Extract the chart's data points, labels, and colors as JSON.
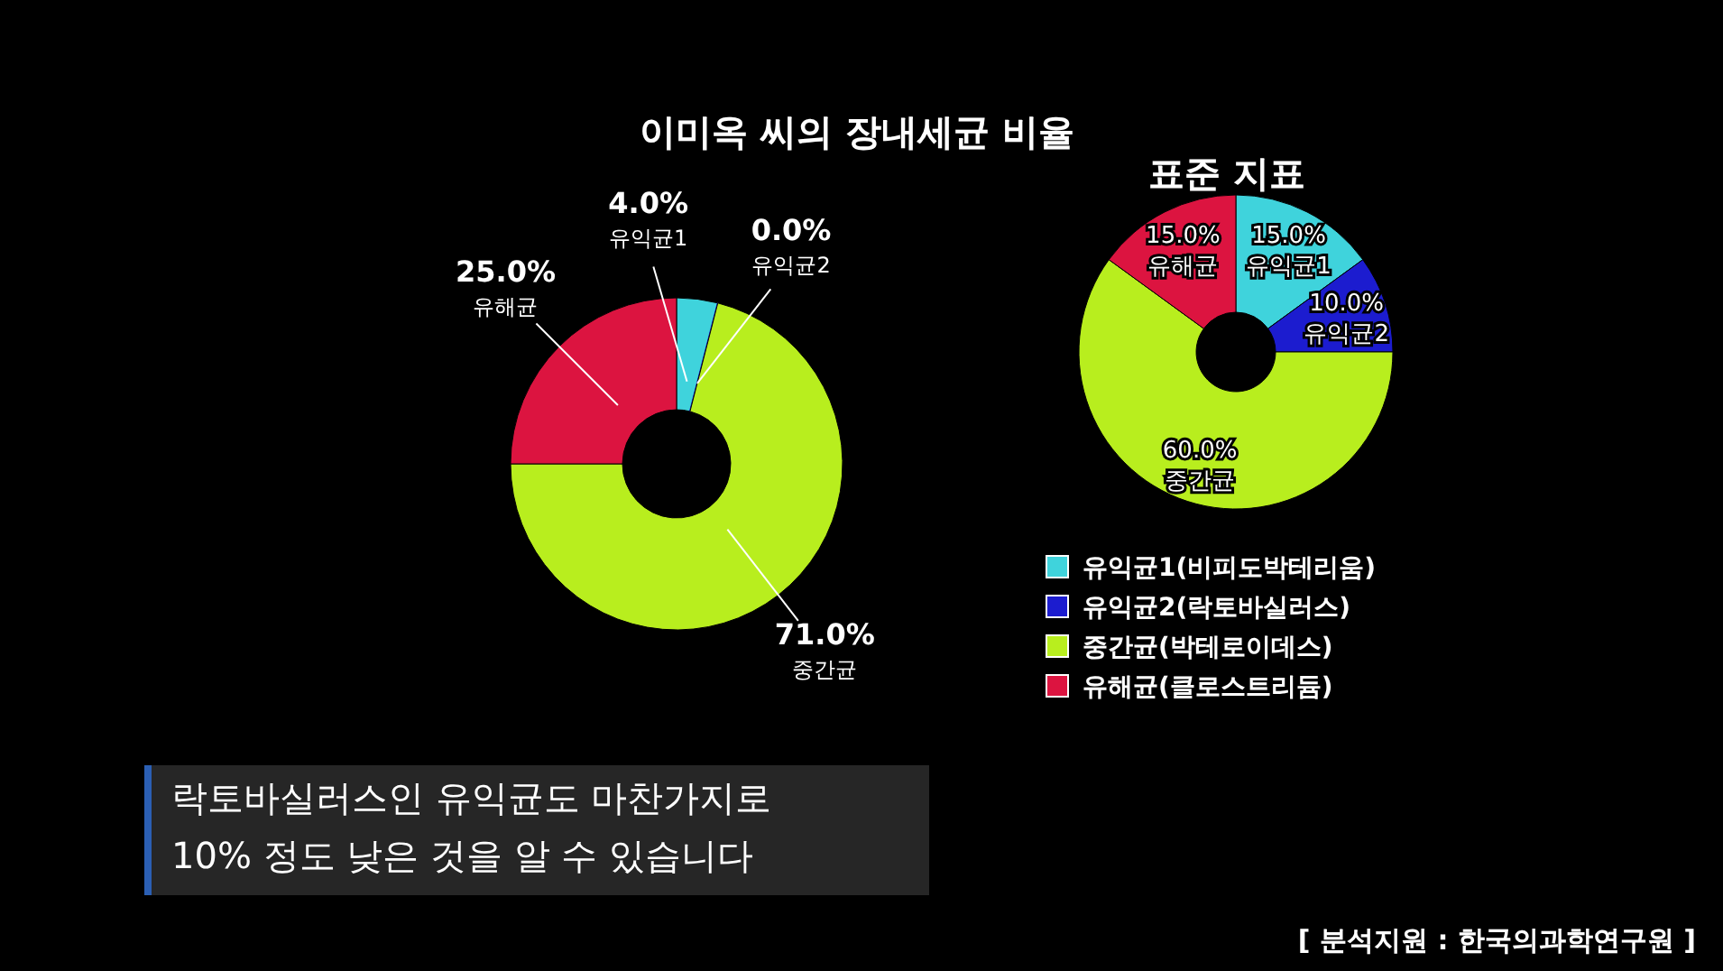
{
  "chart_data": [
    {
      "type": "donut",
      "title": "이미옥 씨의 장내세균 비율",
      "categories": [
        "유익균1",
        "유익균2",
        "중간균",
        "유해균"
      ],
      "values": [
        4.0,
        0.0,
        71.0,
        25.0
      ],
      "colors": [
        "#3fd3dc",
        "#1c1ccf",
        "#b8ee1e",
        "#dc1440"
      ],
      "value_labels": [
        "4.0%",
        "0.0%",
        "71.0%",
        "25.0%"
      ]
    },
    {
      "type": "donut",
      "title": "표준 지표",
      "categories": [
        "유익균1(비피도박테리움)",
        "유익균2(락토바실러스)",
        "중간균(박테로이데스)",
        "유해균(클로스트리듐)"
      ],
      "values": [
        15.0,
        10.0,
        60.0,
        15.0
      ],
      "colors": [
        "#3fd3dc",
        "#1c1ccf",
        "#b8ee1e",
        "#dc1440"
      ],
      "value_labels": [
        "15.0%\n유익균1",
        "10.0%\n유익균2",
        "60.0%\n중간균",
        "15.0%\n유해균"
      ],
      "legend": "bottom",
      "annotations": [
        "락토바실러스인 유익균도 마찬가지로\n10% 정도 낮은 것을 알 수 있습니다",
        "[ 분석지원 : 한국의과학연구원 ]"
      ]
    }
  ]
}
